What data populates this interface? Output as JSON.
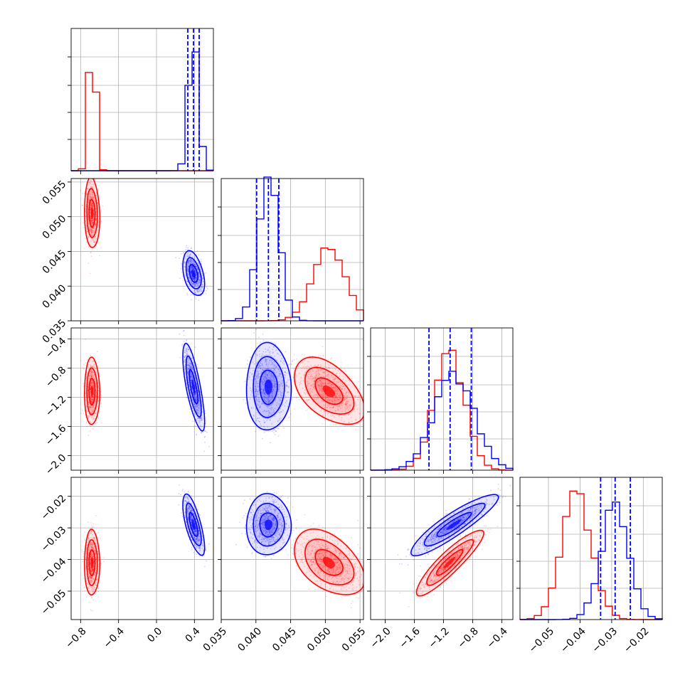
{
  "chart_data": {
    "type": "corner",
    "colors": {
      "series_a": "#ff0000",
      "series_b": "#0000ff"
    },
    "grid": true,
    "parameters": [
      {
        "range": [
          -0.9,
          0.6
        ],
        "ticks": [
          -0.8,
          -0.4,
          0.0,
          0.4
        ],
        "tick_labels": [
          "−0.8",
          "−0.4",
          "0.0",
          "0.4"
        ]
      },
      {
        "range": [
          0.035,
          0.0555
        ],
        "ticks": [
          0.035,
          0.04,
          0.045,
          0.05,
          0.055
        ],
        "tick_labels": [
          "0.035",
          "0.040",
          "0.045",
          "0.050",
          "0.055"
        ]
      },
      {
        "range": [
          -2.2,
          -0.25
        ],
        "ticks": [
          -2.0,
          -1.6,
          -1.2,
          -0.8,
          -0.4
        ],
        "tick_labels": [
          "−2.0",
          "−1.6",
          "−1.2",
          "−0.8",
          "−0.4"
        ]
      },
      {
        "range": [
          -0.059,
          -0.014
        ],
        "ticks": [
          -0.05,
          -0.04,
          -0.03,
          -0.02
        ],
        "tick_labels": [
          "−0.05",
          "−0.04",
          "−0.03",
          "−0.02"
        ]
      }
    ],
    "series_a": {
      "color": "#ff0000",
      "means": [
        -0.68,
        0.0505,
        -1.12,
        -0.041
      ],
      "sds": [
        0.035,
        0.0022,
        0.2,
        0.0045
      ],
      "corr": [
        [
          1,
          -0.1,
          0.0,
          0.0
        ],
        [
          -0.1,
          1,
          -0.5,
          -0.45
        ],
        [
          0.0,
          -0.5,
          1,
          0.9
        ],
        [
          0.0,
          -0.45,
          0.9,
          1
        ]
      ]
    },
    "series_b": {
      "color": "#0000ff",
      "means": [
        0.39,
        0.0418,
        -1.06,
        -0.029
      ],
      "sds": [
        0.05,
        0.0014,
        0.26,
        0.0042
      ],
      "corr": [
        [
          1,
          -0.4,
          -0.75,
          -0.7
        ],
        [
          -0.4,
          1,
          0.0,
          0.0
        ],
        [
          -0.75,
          0.0,
          1,
          0.9
        ],
        [
          -0.7,
          0.0,
          0.9,
          1
        ]
      ],
      "quantile_lines": [
        [
          0.33,
          0.39,
          0.45
        ],
        [
          0.0401,
          0.0418,
          0.0433
        ],
        [
          -1.4,
          -1.11,
          -0.82
        ],
        [
          -0.0335,
          -0.0289,
          -0.0241
        ]
      ]
    },
    "diagonal_hist_peaks": {
      "series_a": [
        1.0,
        0.51,
        0.82,
        0.88
      ],
      "series_b": [
        0.92,
        1.05,
        0.68,
        0.78
      ]
    },
    "histogram_bins": 20
  }
}
